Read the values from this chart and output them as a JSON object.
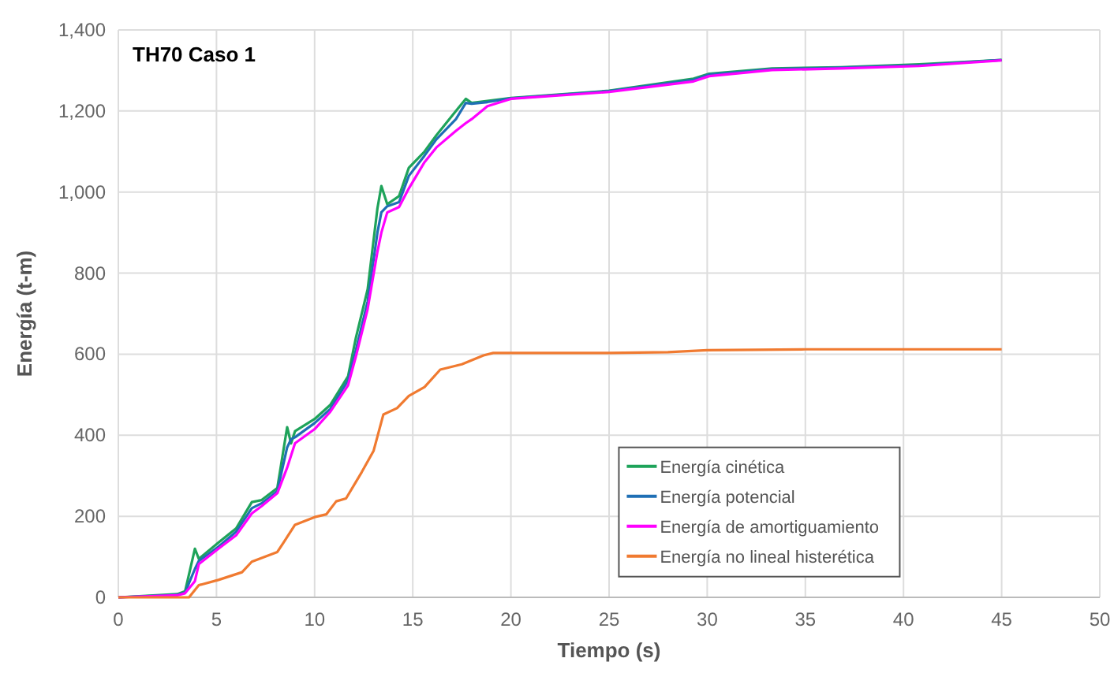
{
  "chart_data": {
    "type": "line",
    "title": "TH70 Caso 1",
    "xlabel": "Tiempo (s)",
    "ylabel": "Energía (t-m)",
    "x": [
      0,
      3,
      3.4,
      3.9,
      4.1,
      5.1,
      6,
      6.8,
      7.3,
      8.1,
      8.6,
      8.8,
      9,
      10,
      10.8,
      11.7,
      12.1,
      12.7,
      13.2,
      13.4,
      13.7,
      14.3,
      14.8,
      15.6,
      16.2,
      17.2,
      17.7,
      18,
      18.8,
      20,
      25,
      29.3,
      30.1,
      33.3,
      36.8,
      40.8,
      45
    ],
    "series": [
      {
        "name": "Energía cinética",
        "color": "#1ea35a",
        "values": [
          0,
          8,
          15,
          120,
          95,
          135,
          170,
          235,
          240,
          270,
          420,
          380,
          410,
          440,
          475,
          545,
          640,
          760,
          960,
          1015,
          970,
          990,
          1060,
          1100,
          1140,
          1200,
          1230,
          1220,
          1225,
          1232,
          1250,
          1280,
          1292,
          1305,
          1308,
          1315,
          1326
        ]
      },
      {
        "name": "Energía potencial",
        "color": "#1f6fb5",
        "values": [
          0,
          6,
          12,
          70,
          90,
          125,
          162,
          220,
          232,
          262,
          370,
          390,
          395,
          430,
          465,
          535,
          610,
          730,
          900,
          950,
          965,
          975,
          1040,
          1090,
          1130,
          1180,
          1220,
          1218,
          1222,
          1231,
          1249,
          1277,
          1290,
          1303,
          1307,
          1313,
          1326
        ]
      },
      {
        "name": "Energía de amortiguamiento",
        "color": "#ff00ff",
        "values": [
          0,
          5,
          10,
          40,
          82,
          120,
          153,
          207,
          225,
          257,
          320,
          350,
          380,
          415,
          458,
          523,
          594,
          711,
          853,
          900,
          950,
          963,
          1009,
          1074,
          1110,
          1151,
          1170,
          1180,
          1212,
          1230,
          1247,
          1273,
          1286,
          1301,
          1305,
          1311,
          1325
        ]
      },
      {
        "name": "Energía no lineal histerética",
        "color": "#f07a30",
        "x": [
          0,
          3.6,
          4.1,
          5.1,
          6.3,
          6.8,
          8.1,
          8.4,
          9,
          10,
          10.6,
          11.1,
          11.6,
          12.4,
          13,
          13.5,
          14.2,
          14.8,
          15.6,
          16.4,
          17.5,
          18.6,
          19.1,
          25,
          28,
          30,
          35,
          45
        ],
        "values": [
          0,
          0,
          30,
          43,
          62,
          88,
          112,
          134,
          179,
          198,
          205,
          237,
          244,
          309,
          361,
          451,
          467,
          497,
          519,
          562,
          575,
          597,
          603,
          603,
          605,
          610,
          612,
          612
        ]
      }
    ],
    "xlim": [
      0,
      50
    ],
    "xticks": [
      0,
      5,
      10,
      15,
      20,
      25,
      30,
      35,
      40,
      45,
      50
    ],
    "ylim": [
      0,
      1400
    ],
    "yticks": [
      0,
      200,
      400,
      600,
      800,
      {
        "value": 1000,
        "label": "1,000"
      },
      {
        "value": 1200,
        "label": "1,200"
      },
      {
        "value": 1400,
        "label": "1,400"
      }
    ],
    "grid": true,
    "legend": "bottom right",
    "marker": "none",
    "line_style": "solid"
  }
}
